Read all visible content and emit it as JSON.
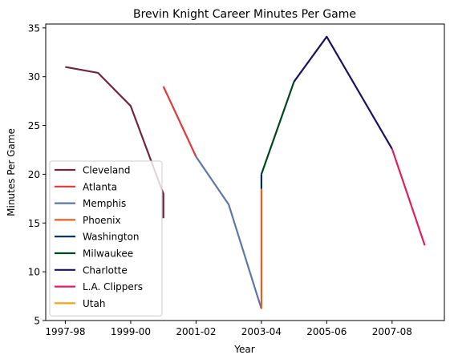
{
  "chart_data": {
    "type": "line",
    "title": "Brevin Knight Career Minutes Per Game",
    "xlabel": "Year",
    "ylabel": "Minutes Per Game",
    "xlim": [
      -0.6,
      11.6
    ],
    "ylim": [
      5,
      35.4
    ],
    "x_ticks": [
      {
        "pos": 0,
        "label": "1997-98"
      },
      {
        "pos": 2,
        "label": "1999-00"
      },
      {
        "pos": 4,
        "label": "2001-02"
      },
      {
        "pos": 6,
        "label": "2003-04"
      },
      {
        "pos": 8,
        "label": "2005-06"
      },
      {
        "pos": 10,
        "label": "2007-08"
      }
    ],
    "y_ticks": [
      5,
      10,
      15,
      20,
      25,
      30,
      35
    ],
    "grid": false,
    "legend": "lower-left",
    "series": [
      {
        "name": "Cleveland",
        "color": "#6f263d",
        "x": [
          0,
          1,
          2,
          3,
          3
        ],
        "y": [
          31.0,
          30.4,
          27.0,
          18.0,
          15.5
        ]
      },
      {
        "name": "Atlanta",
        "color": "#e03a3e",
        "x": [
          3,
          4
        ],
        "y": [
          29.0,
          21.8
        ]
      },
      {
        "name": "Memphis",
        "color": "#5d76a9",
        "x": [
          4,
          5,
          6
        ],
        "y": [
          21.8,
          16.9,
          6.2
        ]
      },
      {
        "name": "Phoenix",
        "color": "#e56020",
        "x": [
          6,
          6
        ],
        "y": [
          6.2,
          18.5
        ]
      },
      {
        "name": "Washington",
        "color": "#002b5c",
        "x": [
          6,
          6
        ],
        "y": [
          18.5,
          20.0
        ]
      },
      {
        "name": "Milwaukee",
        "color": "#00471b",
        "x": [
          6,
          7
        ],
        "y": [
          20.0,
          29.5
        ]
      },
      {
        "name": "Charlotte",
        "color": "#1d1160",
        "x": [
          7,
          8,
          10
        ],
        "y": [
          29.5,
          34.1,
          22.6
        ]
      },
      {
        "name": "L.A. Clippers",
        "color": "#e31c5f",
        "x": [
          10,
          11
        ],
        "y": [
          22.6,
          12.7
        ]
      },
      {
        "name": "Utah",
        "color": "#f9a01b",
        "x": [],
        "y": []
      }
    ]
  }
}
